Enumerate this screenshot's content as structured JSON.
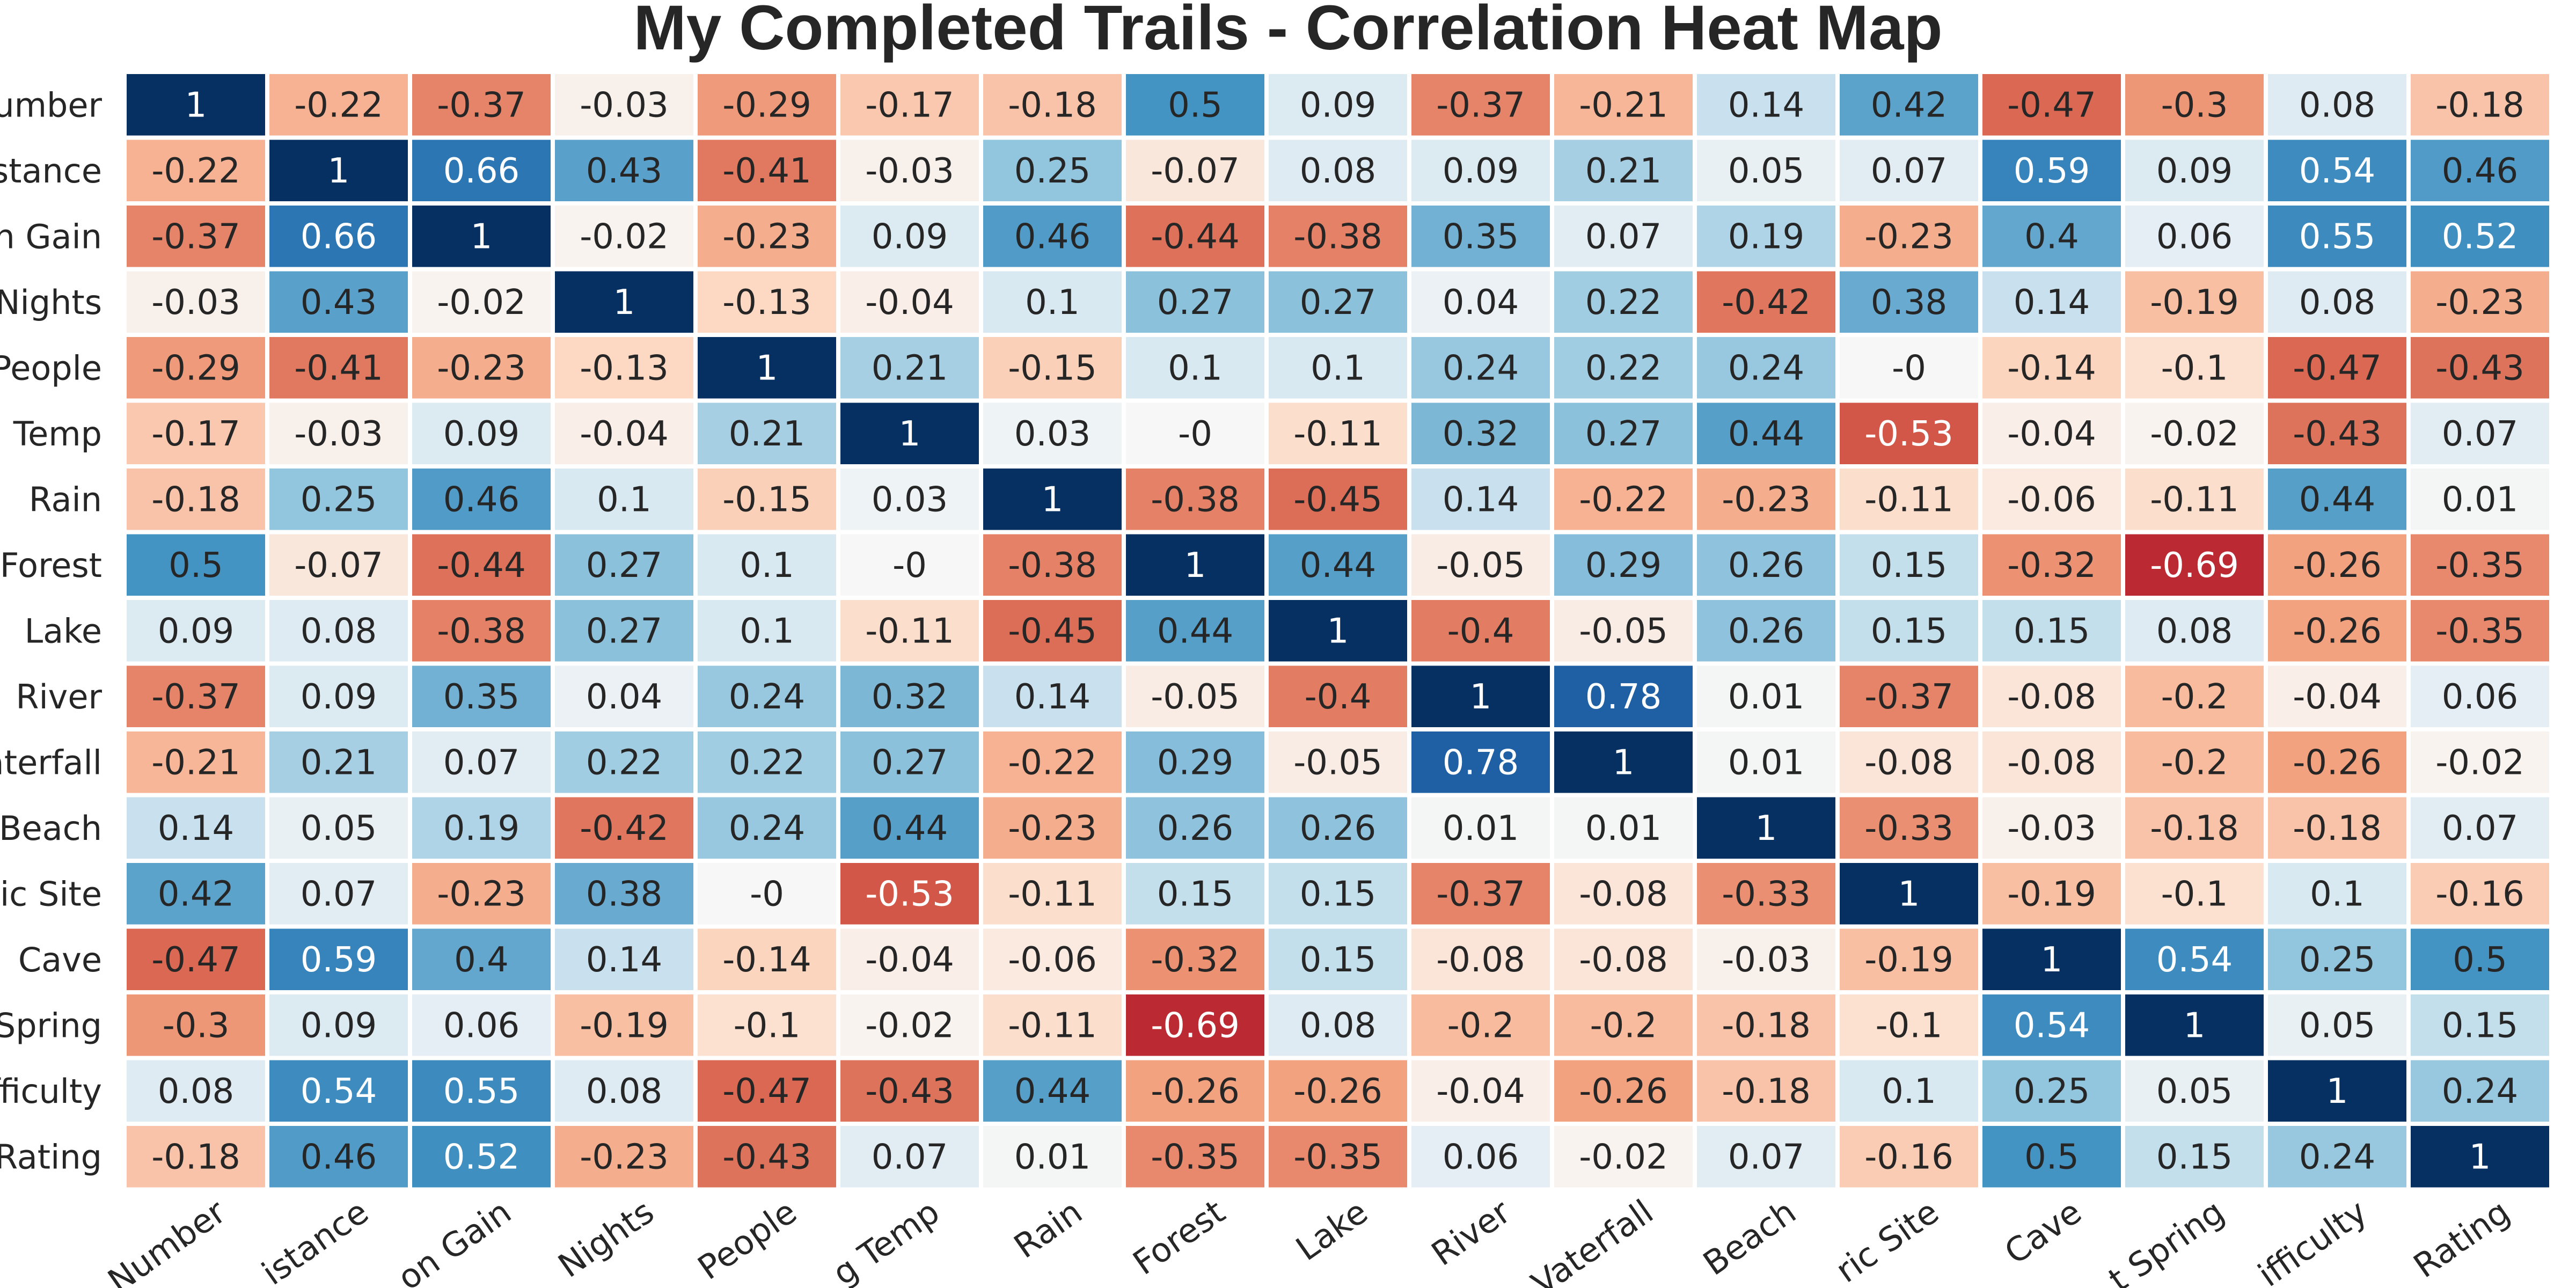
{
  "chart_data": {
    "type": "heatmap",
    "title": "My Completed Trails - Correlation Heat Map",
    "row_labels": [
      "umber",
      "stance",
      "n Gain",
      "Nights",
      "People",
      "Temp",
      "Rain",
      "Forest",
      "Lake",
      "River",
      "aterfall",
      "Beach",
      "ic Site",
      "Cave",
      "Spring",
      "fficulty",
      "Rating"
    ],
    "col_labels": [
      "Number",
      "istance",
      "on Gain",
      "Nights",
      "People",
      "g Temp",
      "Rain",
      "Forest",
      "Lake",
      "River",
      "Vaterfall",
      "Beach",
      "ric Site",
      "Cave",
      "t Spring",
      "ifficulty",
      "Rating"
    ],
    "values": [
      [
        1,
        -0.22,
        -0.37,
        -0.03,
        -0.29,
        -0.17,
        -0.18,
        0.5,
        0.09,
        -0.37,
        -0.21,
        0.14,
        0.42,
        -0.47,
        -0.3,
        0.08,
        -0.18
      ],
      [
        -0.22,
        1,
        0.66,
        0.43,
        -0.41,
        -0.03,
        0.25,
        -0.07,
        0.08,
        0.09,
        0.21,
        0.05,
        0.07,
        0.59,
        0.09,
        0.54,
        0.46
      ],
      [
        -0.37,
        0.66,
        1,
        -0.02,
        -0.23,
        0.09,
        0.46,
        -0.44,
        -0.38,
        0.35,
        0.07,
        0.19,
        -0.23,
        0.4,
        0.06,
        0.55,
        0.52
      ],
      [
        -0.03,
        0.43,
        -0.02,
        1,
        -0.13,
        -0.04,
        0.1,
        0.27,
        0.27,
        0.04,
        0.22,
        -0.42,
        0.38,
        0.14,
        -0.19,
        0.08,
        -0.23
      ],
      [
        -0.29,
        -0.41,
        -0.23,
        -0.13,
        1,
        0.21,
        -0.15,
        0.1,
        0.1,
        0.24,
        0.22,
        0.24,
        "-0",
        -0.14,
        -0.1,
        -0.47,
        -0.43
      ],
      [
        -0.17,
        -0.03,
        0.09,
        -0.04,
        0.21,
        1,
        0.03,
        "-0",
        -0.11,
        0.32,
        0.27,
        0.44,
        -0.53,
        -0.04,
        -0.02,
        -0.43,
        0.07
      ],
      [
        -0.18,
        0.25,
        0.46,
        0.1,
        -0.15,
        0.03,
        1,
        -0.38,
        -0.45,
        0.14,
        -0.22,
        -0.23,
        -0.11,
        -0.06,
        -0.11,
        0.44,
        0.01
      ],
      [
        0.5,
        -0.07,
        -0.44,
        0.27,
        0.1,
        "-0",
        -0.38,
        1,
        0.44,
        -0.05,
        0.29,
        0.26,
        0.15,
        -0.32,
        -0.69,
        -0.26,
        -0.35
      ],
      [
        0.09,
        0.08,
        -0.38,
        0.27,
        0.1,
        -0.11,
        -0.45,
        0.44,
        1,
        -0.4,
        -0.05,
        0.26,
        0.15,
        0.15,
        0.08,
        -0.26,
        -0.35
      ],
      [
        -0.37,
        0.09,
        0.35,
        0.04,
        0.24,
        0.32,
        0.14,
        -0.05,
        -0.4,
        1,
        0.78,
        0.01,
        -0.37,
        -0.08,
        -0.2,
        -0.04,
        0.06
      ],
      [
        -0.21,
        0.21,
        0.07,
        0.22,
        0.22,
        0.27,
        -0.22,
        0.29,
        -0.05,
        0.78,
        1,
        0.01,
        -0.08,
        -0.08,
        -0.2,
        -0.26,
        -0.02
      ],
      [
        0.14,
        0.05,
        0.19,
        -0.42,
        0.24,
        0.44,
        -0.23,
        0.26,
        0.26,
        0.01,
        0.01,
        1,
        -0.33,
        -0.03,
        -0.18,
        -0.18,
        0.07
      ],
      [
        0.42,
        0.07,
        -0.23,
        0.38,
        "-0",
        -0.53,
        -0.11,
        0.15,
        0.15,
        -0.37,
        -0.08,
        -0.33,
        1,
        -0.19,
        -0.1,
        0.1,
        -0.16
      ],
      [
        -0.47,
        0.59,
        0.4,
        0.14,
        -0.14,
        -0.04,
        -0.06,
        -0.32,
        0.15,
        -0.08,
        -0.08,
        -0.03,
        -0.19,
        1,
        0.54,
        0.25,
        0.5
      ],
      [
        -0.3,
        0.09,
        0.06,
        -0.19,
        -0.1,
        -0.02,
        -0.11,
        -0.69,
        0.08,
        -0.2,
        -0.2,
        -0.18,
        -0.1,
        0.54,
        1,
        0.05,
        0.15
      ],
      [
        0.08,
        0.54,
        0.55,
        0.08,
        -0.47,
        -0.43,
        0.44,
        -0.26,
        -0.26,
        -0.04,
        -0.26,
        -0.18,
        0.1,
        0.25,
        0.05,
        1,
        0.24
      ],
      [
        -0.18,
        0.46,
        0.52,
        -0.23,
        -0.43,
        0.07,
        0.01,
        -0.35,
        -0.35,
        0.06,
        -0.02,
        0.07,
        -0.16,
        0.5,
        0.15,
        0.24,
        1
      ]
    ],
    "value_range": [
      -1,
      1
    ],
    "colormap": "RdBu",
    "colors": {
      "negative_end": "#67001f",
      "neutral": "#f7f7f7",
      "positive_end": "#053061"
    },
    "grid": false,
    "legend": "none"
  }
}
